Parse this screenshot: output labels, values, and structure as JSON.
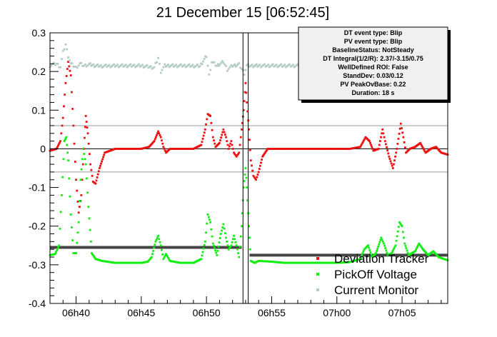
{
  "chart_data": {
    "type": "scatter",
    "title": "21 December 15 [06:52:45]",
    "xlabel": "",
    "ylabel": "",
    "x_unit": "minutes after 06:40",
    "xlim": [
      -2.0,
      28.5
    ],
    "ylim": [
      -0.4,
      0.3
    ],
    "x_ticks": [
      {
        "value": 0,
        "label": "06h40"
      },
      {
        "value": 5,
        "label": "06h45"
      },
      {
        "value": 10,
        "label": "06h50"
      },
      {
        "value": 15,
        "label": "06h55"
      },
      {
        "value": 20,
        "label": "07h00"
      },
      {
        "value": 25,
        "label": "07h05"
      }
    ],
    "y_ticks": [
      {
        "value": 0.3,
        "label": "0.3"
      },
      {
        "value": 0.2,
        "label": "0.2"
      },
      {
        "value": 0.1,
        "label": "0.1"
      },
      {
        "value": 0,
        "label": "0"
      },
      {
        "value": -0.1,
        "label": "-0.1"
      },
      {
        "value": -0.2,
        "label": "-0.2"
      },
      {
        "value": -0.3,
        "label": "-0.3"
      },
      {
        "value": -0.4,
        "label": "-0.4"
      }
    ],
    "reference_lines_y": [
      0.06,
      -0.06
    ],
    "zero_line_y": 0,
    "event_lines_x": [
      12.8,
      13.2
    ],
    "baseline_segments": [
      {
        "x": [
          -2.0,
          12.7
        ],
        "y": -0.255
      },
      {
        "x": [
          13.3,
          28.5
        ],
        "y": -0.275
      }
    ],
    "series": [
      {
        "name": "Deviation Tracker",
        "color": "#ee1111",
        "points": [
          [
            -2.0,
            -0.005
          ],
          [
            -1.5,
            0.0
          ],
          [
            -1.2,
            0.02
          ],
          [
            -1.0,
            0.08
          ],
          [
            -0.8,
            0.17
          ],
          [
            -0.6,
            0.225
          ],
          [
            -0.4,
            0.19
          ],
          [
            -0.2,
            0.06
          ],
          [
            0.0,
            -0.08
          ],
          [
            0.2,
            -0.165
          ],
          [
            0.4,
            -0.12
          ],
          [
            0.6,
            0.0
          ],
          [
            0.75,
            0.085
          ],
          [
            0.9,
            0.04
          ],
          [
            1.1,
            -0.04
          ],
          [
            1.3,
            -0.085
          ],
          [
            1.5,
            -0.09
          ],
          [
            1.8,
            -0.05
          ],
          [
            2.2,
            -0.01
          ],
          [
            3.0,
            0.0
          ],
          [
            4.0,
            0.0
          ],
          [
            5.0,
            0.0
          ],
          [
            5.6,
            0.005
          ],
          [
            6.0,
            0.02
          ],
          [
            6.3,
            0.045
          ],
          [
            6.5,
            0.03
          ],
          [
            6.7,
            0.005
          ],
          [
            6.9,
            -0.01
          ],
          [
            7.2,
            0.0
          ],
          [
            8.0,
            0.0
          ],
          [
            9.0,
            0.0
          ],
          [
            9.6,
            0.01
          ],
          [
            9.9,
            0.05
          ],
          [
            10.1,
            0.09
          ],
          [
            10.3,
            0.085
          ],
          [
            10.5,
            0.03
          ],
          [
            10.7,
            0.005
          ],
          [
            11.0,
            0.015
          ],
          [
            11.3,
            0.05
          ],
          [
            11.5,
            0.03
          ],
          [
            11.7,
            0.0
          ],
          [
            11.9,
            0.02
          ],
          [
            12.1,
            -0.01
          ],
          [
            12.3,
            -0.02
          ],
          [
            12.5,
            -0.01
          ],
          [
            12.7,
            0.05
          ],
          [
            12.85,
            0.1
          ],
          [
            13.0,
            0.17
          ],
          [
            13.1,
            0.12
          ],
          [
            13.25,
            0.05
          ],
          [
            13.4,
            -0.03
          ],
          [
            13.6,
            -0.07
          ],
          [
            13.8,
            -0.08
          ],
          [
            14.0,
            -0.06
          ],
          [
            14.3,
            -0.02
          ],
          [
            14.7,
            0.0
          ],
          [
            16.0,
            0.0
          ],
          [
            17.0,
            0.0
          ],
          [
            18.0,
            0.0
          ],
          [
            19.0,
            0.0
          ],
          [
            20.0,
            0.0
          ],
          [
            21.0,
            0.0
          ],
          [
            21.8,
            0.005
          ],
          [
            22.2,
            0.03
          ],
          [
            22.5,
            0.02
          ],
          [
            22.8,
            -0.005
          ],
          [
            23.2,
            0.0
          ],
          [
            23.5,
            0.05
          ],
          [
            23.7,
            0.02
          ],
          [
            24.0,
            -0.02
          ],
          [
            24.3,
            -0.05
          ],
          [
            24.6,
            0.0
          ],
          [
            24.9,
            0.065
          ],
          [
            25.1,
            0.03
          ],
          [
            25.3,
            -0.01
          ],
          [
            25.6,
            0.0
          ],
          [
            26.0,
            0.005
          ],
          [
            26.4,
            0.015
          ],
          [
            26.8,
            -0.01
          ],
          [
            27.2,
            0.0
          ],
          [
            27.6,
            0.005
          ],
          [
            28.0,
            -0.01
          ],
          [
            28.5,
            -0.015
          ]
        ]
      },
      {
        "name": "PickOff Voltage",
        "color": "#11ee11",
        "points": [
          [
            -2.0,
            -0.275
          ],
          [
            -1.6,
            -0.272
          ],
          [
            -1.3,
            -0.25
          ],
          [
            -1.1,
            -0.12
          ],
          [
            -0.9,
            0.02
          ],
          [
            -0.75,
            0.03
          ],
          [
            -0.6,
            -0.03
          ],
          [
            -0.4,
            -0.17
          ],
          [
            -0.2,
            -0.27
          ],
          [
            0.0,
            -0.27
          ],
          [
            0.2,
            -0.19
          ],
          [
            0.35,
            -0.08
          ],
          [
            0.55,
            0.0
          ],
          [
            0.75,
            -0.04
          ],
          [
            0.95,
            -0.15
          ],
          [
            1.2,
            -0.27
          ],
          [
            1.5,
            -0.285
          ],
          [
            2.0,
            -0.29
          ],
          [
            3.0,
            -0.295
          ],
          [
            4.0,
            -0.295
          ],
          [
            5.0,
            -0.295
          ],
          [
            5.5,
            -0.292
          ],
          [
            5.8,
            -0.28
          ],
          [
            6.1,
            -0.24
          ],
          [
            6.3,
            -0.225
          ],
          [
            6.5,
            -0.25
          ],
          [
            6.7,
            -0.285
          ],
          [
            6.9,
            -0.272
          ],
          [
            7.2,
            -0.29
          ],
          [
            8.0,
            -0.295
          ],
          [
            9.0,
            -0.295
          ],
          [
            9.6,
            -0.285
          ],
          [
            9.9,
            -0.24
          ],
          [
            10.1,
            -0.17
          ],
          [
            10.3,
            -0.19
          ],
          [
            10.5,
            -0.245
          ],
          [
            10.8,
            -0.275
          ],
          [
            11.1,
            -0.22
          ],
          [
            11.3,
            -0.195
          ],
          [
            11.5,
            -0.23
          ],
          [
            11.7,
            -0.26
          ],
          [
            11.9,
            -0.25
          ],
          [
            12.1,
            -0.225
          ],
          [
            12.3,
            -0.25
          ],
          [
            12.5,
            -0.28
          ],
          [
            12.7,
            -0.2
          ],
          [
            12.85,
            -0.1
          ],
          [
            13.0,
            -0.05
          ],
          [
            13.1,
            -0.1
          ],
          [
            13.25,
            -0.2
          ],
          [
            13.4,
            -0.29
          ],
          [
            13.7,
            -0.295
          ],
          [
            14.0,
            -0.29
          ],
          [
            15.0,
            -0.292
          ],
          [
            16.0,
            -0.295
          ],
          [
            17.0,
            -0.295
          ],
          [
            18.0,
            -0.295
          ],
          [
            19.0,
            -0.295
          ],
          [
            20.0,
            -0.295
          ],
          [
            21.0,
            -0.293
          ],
          [
            21.8,
            -0.285
          ],
          [
            22.1,
            -0.26
          ],
          [
            22.4,
            -0.25
          ],
          [
            22.7,
            -0.28
          ],
          [
            23.0,
            -0.27
          ],
          [
            23.4,
            -0.23
          ],
          [
            23.6,
            -0.245
          ],
          [
            23.9,
            -0.275
          ],
          [
            24.2,
            -0.27
          ],
          [
            24.5,
            -0.25
          ],
          [
            24.8,
            -0.19
          ],
          [
            25.0,
            -0.2
          ],
          [
            25.2,
            -0.245
          ],
          [
            25.5,
            -0.275
          ],
          [
            26.0,
            -0.265
          ],
          [
            26.3,
            -0.245
          ],
          [
            26.6,
            -0.26
          ],
          [
            27.0,
            -0.275
          ],
          [
            27.4,
            -0.265
          ],
          [
            27.8,
            -0.28
          ],
          [
            28.2,
            -0.285
          ],
          [
            28.5,
            -0.288
          ]
        ]
      },
      {
        "name": "Current Monitor",
        "color": "#b4ccc4",
        "points": [
          [
            -2.0,
            0.215
          ],
          [
            -1.8,
            0.218
          ],
          [
            -1.5,
            0.22
          ],
          [
            -1.2,
            0.212
          ],
          [
            -1.0,
            0.25
          ],
          [
            -0.8,
            0.27
          ],
          [
            -0.6,
            0.24
          ],
          [
            -0.4,
            0.22
          ],
          [
            -0.2,
            0.215
          ],
          [
            0.0,
            0.21
          ],
          [
            0.3,
            0.22
          ],
          [
            0.6,
            0.215
          ],
          [
            1.0,
            0.218
          ],
          [
            1.5,
            0.215
          ],
          [
            2.0,
            0.214
          ],
          [
            3.0,
            0.215
          ],
          [
            4.0,
            0.215
          ],
          [
            5.0,
            0.215
          ],
          [
            6.0,
            0.21
          ],
          [
            6.3,
            0.235
          ],
          [
            6.5,
            0.2
          ],
          [
            6.8,
            0.215
          ],
          [
            7.5,
            0.215
          ],
          [
            8.5,
            0.215
          ],
          [
            9.5,
            0.214
          ],
          [
            10.0,
            0.24
          ],
          [
            10.2,
            0.19
          ],
          [
            10.4,
            0.225
          ],
          [
            10.8,
            0.215
          ],
          [
            11.3,
            0.225
          ],
          [
            11.6,
            0.205
          ],
          [
            12.0,
            0.215
          ],
          [
            12.5,
            0.218
          ],
          [
            12.9,
            0.195
          ],
          [
            13.1,
            0.215
          ],
          [
            13.5,
            0.215
          ],
          [
            14.0,
            0.215
          ],
          [
            15.0,
            0.215
          ],
          [
            16.0,
            0.215
          ],
          [
            17.0,
            0.215
          ],
          [
            18.0,
            0.215
          ],
          [
            19.0,
            0.215
          ],
          [
            20.0,
            0.215
          ],
          [
            21.0,
            0.215
          ],
          [
            22.0,
            0.215
          ],
          [
            23.0,
            0.215
          ],
          [
            24.0,
            0.215
          ],
          [
            25.0,
            0.215
          ],
          [
            26.0,
            0.215
          ],
          [
            27.0,
            0.215
          ],
          [
            28.0,
            0.215
          ],
          [
            28.5,
            0.215
          ]
        ]
      }
    ],
    "legend": {
      "placement": "bottom-right",
      "entries": [
        {
          "label": "Deviation Tracker",
          "color": "#ee1111"
        },
        {
          "label": "PickOff Voltage",
          "color": "#11ee11"
        },
        {
          "label": "Current Monitor",
          "color": "#b4ccc4"
        }
      ]
    },
    "info_box": {
      "placement": "top-right",
      "lines": [
        "DT event type: Blip",
        "PV event type: Blip",
        "BaselineStatus: NotSteady",
        "DT Integral(1/2/R): 2.37/-3.15/0.75",
        "WellDefined ROI: False",
        "StandDev: 0.03/0.12",
        "PV PeakOvBase: 0.22",
        "Duration: 18 s"
      ]
    }
  }
}
